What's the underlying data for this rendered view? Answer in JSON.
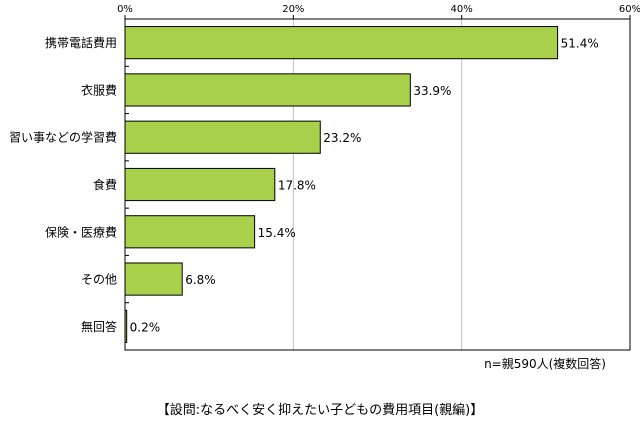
{
  "chart_data": {
    "type": "bar",
    "orientation": "horizontal",
    "categories": [
      "携帯電話費用",
      "衣服費",
      "習い事などの学習費",
      "食費",
      "保険・医療費",
      "その他",
      "無回答"
    ],
    "values": [
      51.4,
      33.9,
      23.2,
      17.8,
      15.4,
      6.8,
      0.2
    ],
    "value_labels": [
      "51.4%",
      "33.9%",
      "23.2%",
      "17.8%",
      "15.4%",
      "6.8%",
      "0.2%"
    ],
    "x_ticks": [
      "0%",
      "20%",
      "40%",
      "60%"
    ],
    "xlim": [
      0,
      60
    ],
    "x_tick_values": [
      0,
      20,
      40,
      60
    ],
    "x_axis_position": "top",
    "grid": true,
    "bar_color": "#a8d04a",
    "bar_edge_color": "#000000",
    "grid_color": "#c0c0c0"
  },
  "note": "n=親590人(複数回答)",
  "caption": "【設問:なるべく安く抑えたい子どもの費用項目(親編)】"
}
